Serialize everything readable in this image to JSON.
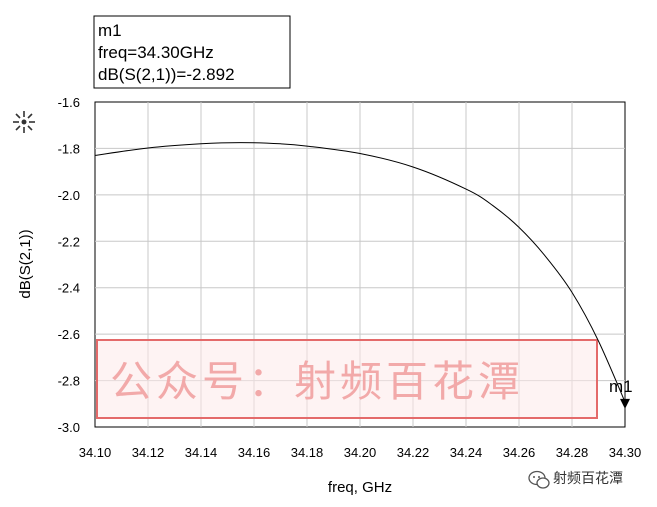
{
  "chart_data": {
    "type": "line",
    "xlabel": "freq, GHz",
    "ylabel": "dB(S(2,1))",
    "xlim": [
      34.1,
      34.3
    ],
    "ylim": [
      -3.0,
      -1.6
    ],
    "x_ticks": [
      "34.10",
      "34.12",
      "34.14",
      "34.16",
      "34.18",
      "34.20",
      "34.22",
      "34.24",
      "34.26",
      "34.28",
      "34.30"
    ],
    "y_ticks": [
      "-1.6",
      "-1.8",
      "-2.0",
      "-2.2",
      "-2.4",
      "-2.6",
      "-2.8",
      "-3.0"
    ],
    "grid": true,
    "series": [
      {
        "x": [
          34.1,
          34.12,
          34.14,
          34.155,
          34.17,
          34.18,
          34.2,
          34.22,
          34.24,
          34.25,
          34.26,
          34.27,
          34.28,
          34.29,
          34.3
        ],
        "y": [
          -1.83,
          -1.798,
          -1.78,
          -1.775,
          -1.78,
          -1.79,
          -1.822,
          -1.88,
          -1.975,
          -2.045,
          -2.14,
          -2.265,
          -2.42,
          -2.63,
          -2.892
        ]
      }
    ],
    "marker": {
      "name": "m1",
      "freq_line": "freq=34.30GHz",
      "value_line": "dB(S(2,1))=-2.892",
      "x": 34.3,
      "y": -2.892
    }
  },
  "watermark": {
    "text": "公众号：射频百花潭"
  },
  "logo": {
    "text": "射频百花潭",
    "icon": "wechat-bubble-icon"
  },
  "colors": {
    "curve": "#000000",
    "grid": "#c8c8c8",
    "watermark": "#f2a9a9",
    "watermark_border": "#e46a6a"
  }
}
